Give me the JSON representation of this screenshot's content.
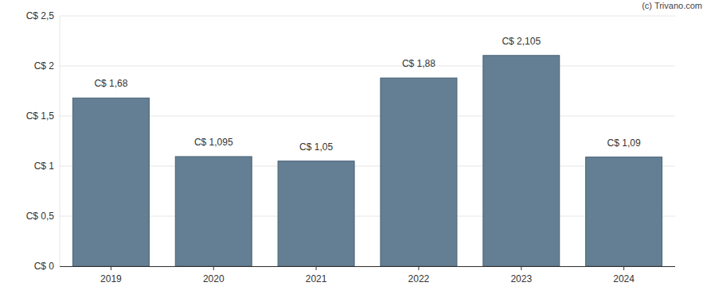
{
  "chart_data": {
    "type": "bar",
    "categories": [
      "2019",
      "2020",
      "2021",
      "2022",
      "2023",
      "2024"
    ],
    "values": [
      1.68,
      1.095,
      1.05,
      1.88,
      2.105,
      1.09
    ],
    "value_labels": [
      "C$ 1,68",
      "C$ 1,095",
      "C$ 1,05",
      "C$ 1,88",
      "C$ 2,105",
      "C$ 1,09"
    ],
    "color": "#647f93",
    "ylim": [
      0,
      2.5
    ],
    "yticks": [
      {
        "value": 0,
        "label": "C$ 0"
      },
      {
        "value": 0.5,
        "label": "C$ 0,5"
      },
      {
        "value": 1,
        "label": "C$ 1"
      },
      {
        "value": 1.5,
        "label": "C$ 1,5"
      },
      {
        "value": 2,
        "label": "C$ 2"
      },
      {
        "value": 2.5,
        "label": "C$ 2,5"
      }
    ],
    "grid": true,
    "data_labels": true,
    "annotations": [
      "(c) Trivano.com"
    ]
  }
}
